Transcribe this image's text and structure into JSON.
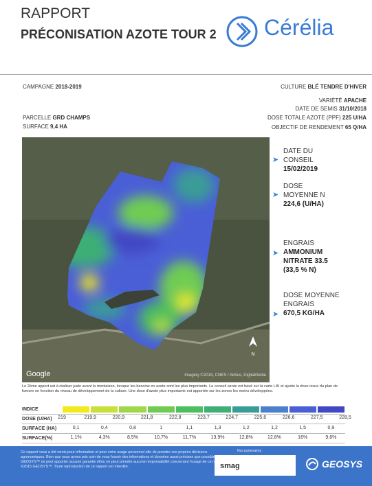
{
  "header": {
    "title": "RAPPORT",
    "subtitle": "PRÉCONISATION AZOTE TOUR 2",
    "logo": "Cérélia"
  },
  "info": {
    "campagne_label": "CAMPAGNE",
    "campagne": "2018-2019",
    "culture_label": "CULTURE",
    "culture": "BLÉ TENDRE D'HIVER",
    "variete_label": "VARIÉTÉ",
    "variete": "APACHE",
    "semis_label": "DATE DE SEMIS",
    "semis": "31/10/2018",
    "dose_totale_label": "DOSE TOTALE AZOTE (PPF)",
    "dose_totale": "225 U/HA",
    "objectif_label": "OBJECTIF DE RENDEMENT",
    "objectif": "65 Q/HA",
    "parcelle_label": "PARCELLE",
    "parcelle": "GRD CHAMPS",
    "surface_label": "SURFACE",
    "surface": "9,4 HA"
  },
  "map": {
    "provider": "Google",
    "credits": "Imagery ©2019, CNES / Airbus, DigitalGlobe",
    "north": "N"
  },
  "summary": [
    {
      "label": "DATE DU CONSEIL",
      "value": "15/02/2019"
    },
    {
      "label": "DOSE MOYENNE N",
      "value": "224,6 (U/HA)"
    },
    {
      "label": "ENGRAIS",
      "value": "AMMONIUM NITRATE 33.5",
      "note": "(33,5 % N)"
    },
    {
      "label": "DOSE MOYENNE ENGRAIS",
      "value": "670,5 KG/HA"
    }
  ],
  "description": "Le 2ème apport est à réaliser juste avant la montaison, lorsque les besoins en azote sont les plus importants. Le conseil azote est basé sur la carte LAI et ajuste la dose issue du plan de fumure en fonction du niveau de développement de la culture. Une dose d'azote plus importante est apportée sur les zones les moins développées.",
  "table": {
    "row_labels": [
      "INDICE",
      "DOSE (U/HA)",
      "SURFACE (HA)",
      "SURFACE(%)"
    ],
    "colors": [
      "#f2ea1c",
      "#c8e03a",
      "#9fd748",
      "#6fcc52",
      "#4cbf5c",
      "#3eaf76",
      "#3a9c96",
      "#4d7fcf",
      "#4a5fd6",
      "#4247c4"
    ],
    "dose": [
      "219",
      "219,9",
      "220,9",
      "221,8",
      "222,8",
      "223,7",
      "224,7",
      "225,6",
      "226,6",
      "227,5",
      "228,5"
    ],
    "surface_ha": [
      "0,1",
      "0,4",
      "0,8",
      "1",
      "1,1",
      "1,3",
      "1,2",
      "1,2",
      "1,5",
      "0,9"
    ],
    "surface_pct": [
      "1,1%",
      "4,3%",
      "8,5%",
      "10,7%",
      "11,7%",
      "13,9%",
      "12,8%",
      "12,8%",
      "16%",
      "9,6%"
    ]
  },
  "footer": {
    "disclaimer": "Ce rapport vous a été remis pour information et pour votre usage personnel afin de prendre vos propres décisions agronomiques. Bien que nous ayons pris soin de vous fournir des informations et données aussi précises que possibles, GEOSYS™ ne peut apporter aucune garantie et/ou ne peut prendre aucune responsabilité concernant l'usage de ce rapport. ©2015 GEOSYS™. Toute reproduction de ce rapport est interdite.",
    "partners_label": "Nos partenaires",
    "partner": "smag",
    "brand": "GEOSYS"
  }
}
